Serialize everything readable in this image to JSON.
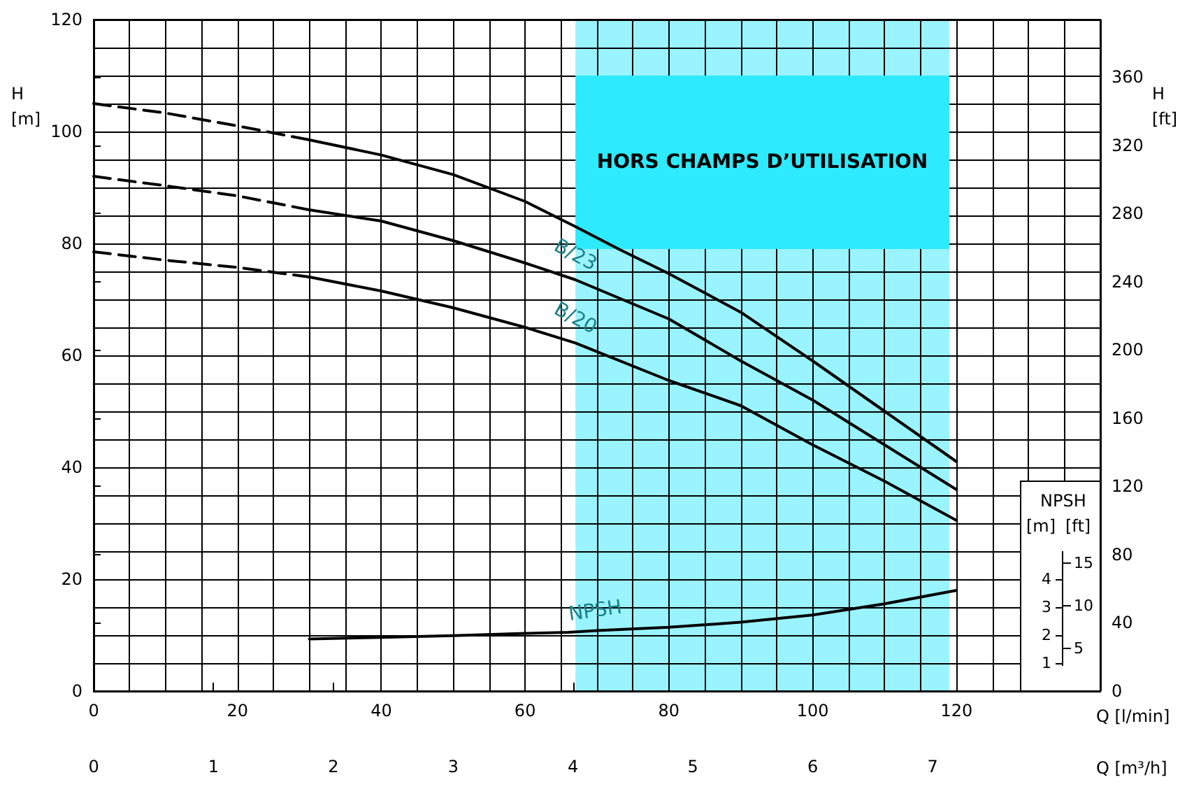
{
  "chart_data": {
    "type": "line",
    "xlabel": "Q [l/min]",
    "x2label": "Q [m³/h]",
    "ylabel": "H [m]",
    "y2label": "H [ft]",
    "y3label": "[m]",
    "xlim": [
      0,
      140
    ],
    "xticks": [
      0,
      {
        "value": 5,
        "label": null
      },
      {
        "value": 10,
        "label": null
      },
      {
        "value": 15,
        "label": null
      },
      20,
      {
        "value": 25,
        "label": null
      },
      {
        "value": 30,
        "label": null
      },
      {
        "value": 35,
        "label": null
      },
      40,
      {
        "value": 45,
        "label": null
      },
      {
        "value": 50,
        "label": null
      },
      {
        "value": 55,
        "label": null
      },
      60,
      {
        "value": 65,
        "label": null
      },
      {
        "value": 70,
        "label": null
      },
      {
        "value": 75,
        "label": null
      },
      80,
      {
        "value": 85,
        "label": null
      },
      {
        "value": 90,
        "label": null
      },
      {
        "value": 95,
        "label": null
      },
      100,
      {
        "value": 105,
        "label": null
      },
      {
        "value": 110,
        "label": null
      },
      {
        "value": 115,
        "label": null
      },
      120,
      {
        "value": 125,
        "label": null
      },
      {
        "value": 130,
        "label": null
      },
      {
        "value": 135,
        "label": null
      },
      {
        "value": 140,
        "label": null
      }
    ],
    "ylim": [
      0,
      120
    ],
    "yticks": [
      0,
      {
        "value": 5,
        "label": null
      },
      {
        "value": 10,
        "label": null
      },
      {
        "value": 15,
        "label": null
      },
      20,
      {
        "value": 25,
        "label": null
      },
      {
        "value": 30,
        "label": null
      },
      {
        "value": 35,
        "label": null
      },
      40,
      {
        "value": 45,
        "label": null
      },
      {
        "value": 50,
        "label": null
      },
      {
        "value": 55,
        "label": null
      },
      60,
      {
        "value": 65,
        "label": null
      },
      {
        "value": 70,
        "label": null
      },
      {
        "value": 75,
        "label": null
      },
      80,
      {
        "value": 85,
        "label": null
      },
      {
        "value": 90,
        "label": null
      },
      {
        "value": 95,
        "label": null
      },
      100,
      {
        "value": 105,
        "label": null
      },
      {
        "value": 110,
        "label": null
      },
      {
        "value": 115,
        "label": null
      },
      120
    ],
    "x2lim": [
      0,
      8.4
    ],
    "x2ticks": [
      0,
      1,
      2,
      3,
      4,
      5,
      6,
      7
    ],
    "y2lim": [
      0,
      393.7
    ],
    "y2ticks": [
      0,
      40,
      80,
      120,
      160,
      200,
      240,
      280,
      320,
      360
    ],
    "y3lim": [
      0,
      24
    ],
    "y3ticks": [
      1,
      2,
      3,
      4
    ],
    "grid": true,
    "legend": false,
    "marker": "none",
    "series": [
      {
        "color": "#000000",
        "line_style": "dashed",
        "x": [
          0,
          10,
          20,
          30
        ],
        "values": [
          105,
          103.3,
          101,
          98.5
        ]
      },
      {
        "color": "#000000",
        "line_style": "solid",
        "x": [
          30,
          40,
          50,
          60,
          67,
          73,
          80,
          90,
          100,
          110,
          120
        ],
        "values": [
          98.5,
          95.8,
          92.3,
          87.5,
          83,
          79,
          74.6,
          67.7,
          59,
          50,
          41
        ]
      },
      {
        "color": "#000000",
        "line_style": "dashed",
        "x": [
          0,
          10,
          20,
          30
        ],
        "values": [
          92,
          90.3,
          88.5,
          86
        ]
      },
      {
        "name": "B/23",
        "color": "#000000",
        "line_style": "solid",
        "x": [
          30,
          40,
          50,
          60,
          67,
          80,
          90,
          100,
          110,
          120
        ],
        "values": [
          86,
          84,
          80.5,
          76.5,
          73.5,
          66.5,
          59,
          52,
          44,
          36
        ]
      },
      {
        "color": "#000000",
        "line_style": "dashed",
        "x": [
          0,
          10,
          20,
          30
        ],
        "values": [
          78.5,
          77,
          75.7,
          74
        ]
      },
      {
        "name": "B/20",
        "color": "#000000",
        "line_style": "solid",
        "x": [
          30,
          40,
          50,
          60,
          67,
          80,
          90,
          100,
          110,
          120
        ],
        "values": [
          74,
          71.5,
          68.5,
          65,
          62.2,
          55.5,
          51,
          44,
          37.5,
          30.5
        ]
      },
      {
        "name": "NPSH",
        "color": "#000000",
        "line_style": "solid",
        "axis": "y3",
        "x": [
          30,
          40,
          50,
          60,
          66,
          70,
          80,
          90,
          100,
          110,
          120
        ],
        "values": [
          1.86,
          1.92,
          1.98,
          2.06,
          2.1,
          2.16,
          2.28,
          2.46,
          2.72,
          3.12,
          3.6
        ]
      }
    ],
    "bands": [
      {
        "axis": "x",
        "from": 67,
        "to": 119,
        "label": "HORS CHAMPS D’UTILISATION",
        "color": "#99f4ff"
      }
    ],
    "annotations": [
      "NPSH",
      "[ft]",
      "5",
      "10",
      "15"
    ]
  }
}
